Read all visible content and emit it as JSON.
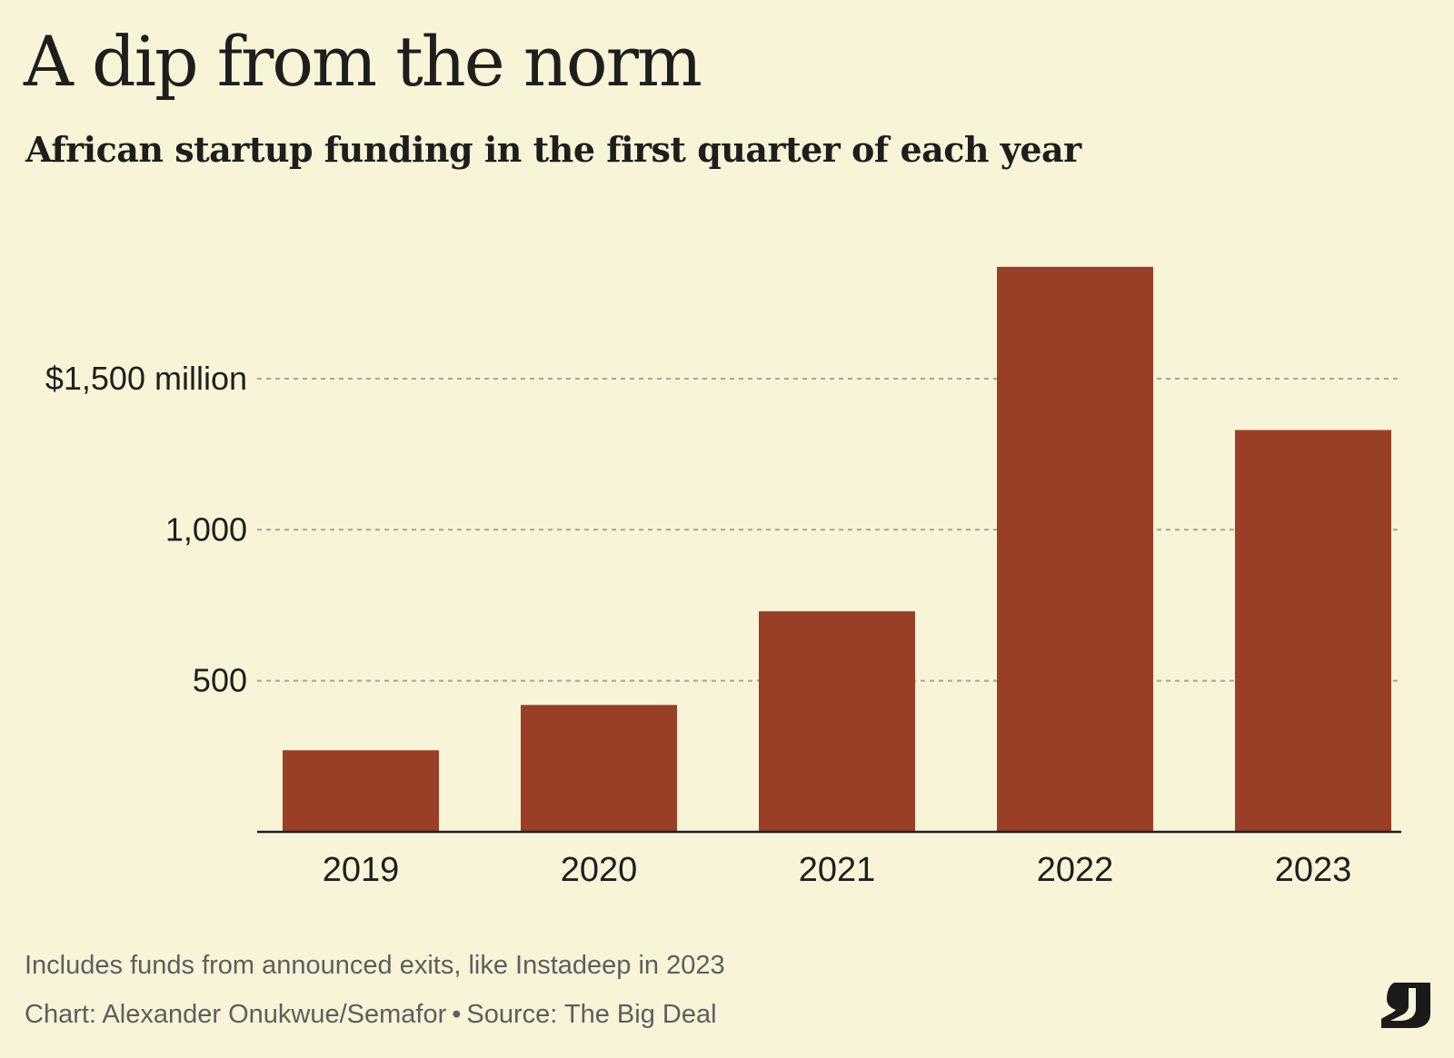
{
  "title": "A dip from the norm",
  "subtitle": "African startup funding in the first quarter of each year",
  "footer": {
    "note": "Includes funds from announced exits, like Instadeep in 2023",
    "chart_credit": "Chart: Alexander Onukwue/Semafor",
    "separator": "•",
    "source": "Source: The Big Deal"
  },
  "logo": {
    "icon": "semafor-logo",
    "text": "S"
  },
  "colors": {
    "background": "#f8f4d8",
    "bar": "#9a3f27",
    "grid": "#a8a496",
    "axis": "#1f1f1f"
  },
  "chart_data": {
    "type": "bar",
    "categories": [
      "2019",
      "2020",
      "2021",
      "2022",
      "2023"
    ],
    "values": [
      270,
      420,
      730,
      1870,
      1330
    ],
    "ylim": [
      0,
      2000
    ],
    "yticks": [
      {
        "value": 500,
        "label": "500"
      },
      {
        "value": 1000,
        "label": "1,000"
      },
      {
        "value": 1500,
        "label": "$1,500 million"
      }
    ],
    "grid": true,
    "xlabel": "",
    "ylabel": ""
  }
}
